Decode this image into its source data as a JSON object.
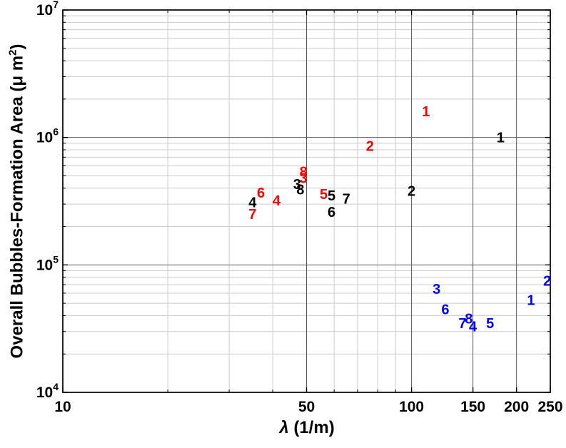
{
  "chart_data": {
    "type": "scatter",
    "marker_style": "numeric-text-labels",
    "title": "",
    "xlabel": "λ (1/m)",
    "xlabel_parts": {
      "symbol": "λ",
      "rest": " (1/m)"
    },
    "ylabel": "Overall Bubbles-Formation Area (μ m²)",
    "ylabel_parts": {
      "main": "Overall Bubbles-Formation Area (μ m",
      "exp": "2",
      "close": ")"
    },
    "xscale": "log",
    "yscale": "log",
    "xlim": [
      10,
      250
    ],
    "ylim": [
      10000,
      10000000
    ],
    "x_ticks": [
      10,
      50,
      100,
      150,
      200,
      250
    ],
    "y_ticks_exponents": [
      4,
      5,
      6,
      7
    ],
    "grid": {
      "on": true,
      "x_minor": [
        20,
        30,
        40,
        60,
        70,
        80,
        90
      ],
      "x_major": [
        50,
        100,
        150,
        200
      ],
      "y_major_exponents": [
        5,
        6
      ],
      "y_minor_decades": [
        4,
        5,
        6
      ],
      "y_minor_mantissas": [
        2,
        3,
        4,
        5,
        6,
        7,
        8,
        9
      ]
    },
    "colors": {
      "axis": "#000000",
      "major_grid": "#5a5a5a",
      "minor_grid": "#cccccc",
      "red_series": "#ff0000",
      "black_series": "#000000",
      "blue_series": "#0000ff"
    },
    "series": [
      {
        "name": "red-series",
        "color": "#ff0000",
        "points": [
          {
            "label": "1",
            "x": 110,
            "y": 1600000
          },
          {
            "label": "2",
            "x": 76,
            "y": 860000
          },
          {
            "label": "8",
            "x": 49,
            "y": 540000
          },
          {
            "label": "3",
            "x": 49,
            "y": 480000
          },
          {
            "label": "6",
            "x": 37,
            "y": 370000
          },
          {
            "label": "5",
            "x": 56,
            "y": 360000
          },
          {
            "label": "4",
            "x": 41,
            "y": 320000
          },
          {
            "label": "7",
            "x": 35,
            "y": 250000
          }
        ]
      },
      {
        "name": "black-series",
        "color": "#000000",
        "points": [
          {
            "label": "1",
            "x": 180,
            "y": 1000000
          },
          {
            "label": "3",
            "x": 47,
            "y": 430000
          },
          {
            "label": "8",
            "x": 48,
            "y": 390000
          },
          {
            "label": "2",
            "x": 100,
            "y": 380000
          },
          {
            "label": "5",
            "x": 59,
            "y": 350000
          },
          {
            "label": "7",
            "x": 65,
            "y": 330000
          },
          {
            "label": "4",
            "x": 35,
            "y": 310000
          },
          {
            "label": "6",
            "x": 59,
            "y": 260000
          }
        ]
      },
      {
        "name": "blue-series",
        "color": "#0000ff",
        "points": [
          {
            "label": "2",
            "x": 245,
            "y": 75000
          },
          {
            "label": "3",
            "x": 118,
            "y": 65000
          },
          {
            "label": "1",
            "x": 220,
            "y": 53000
          },
          {
            "label": "6",
            "x": 125,
            "y": 45000
          },
          {
            "label": "8",
            "x": 146,
            "y": 38000
          },
          {
            "label": "7",
            "x": 140,
            "y": 35000
          },
          {
            "label": "5",
            "x": 168,
            "y": 35000
          },
          {
            "label": "4",
            "x": 150,
            "y": 33000
          }
        ]
      }
    ]
  }
}
